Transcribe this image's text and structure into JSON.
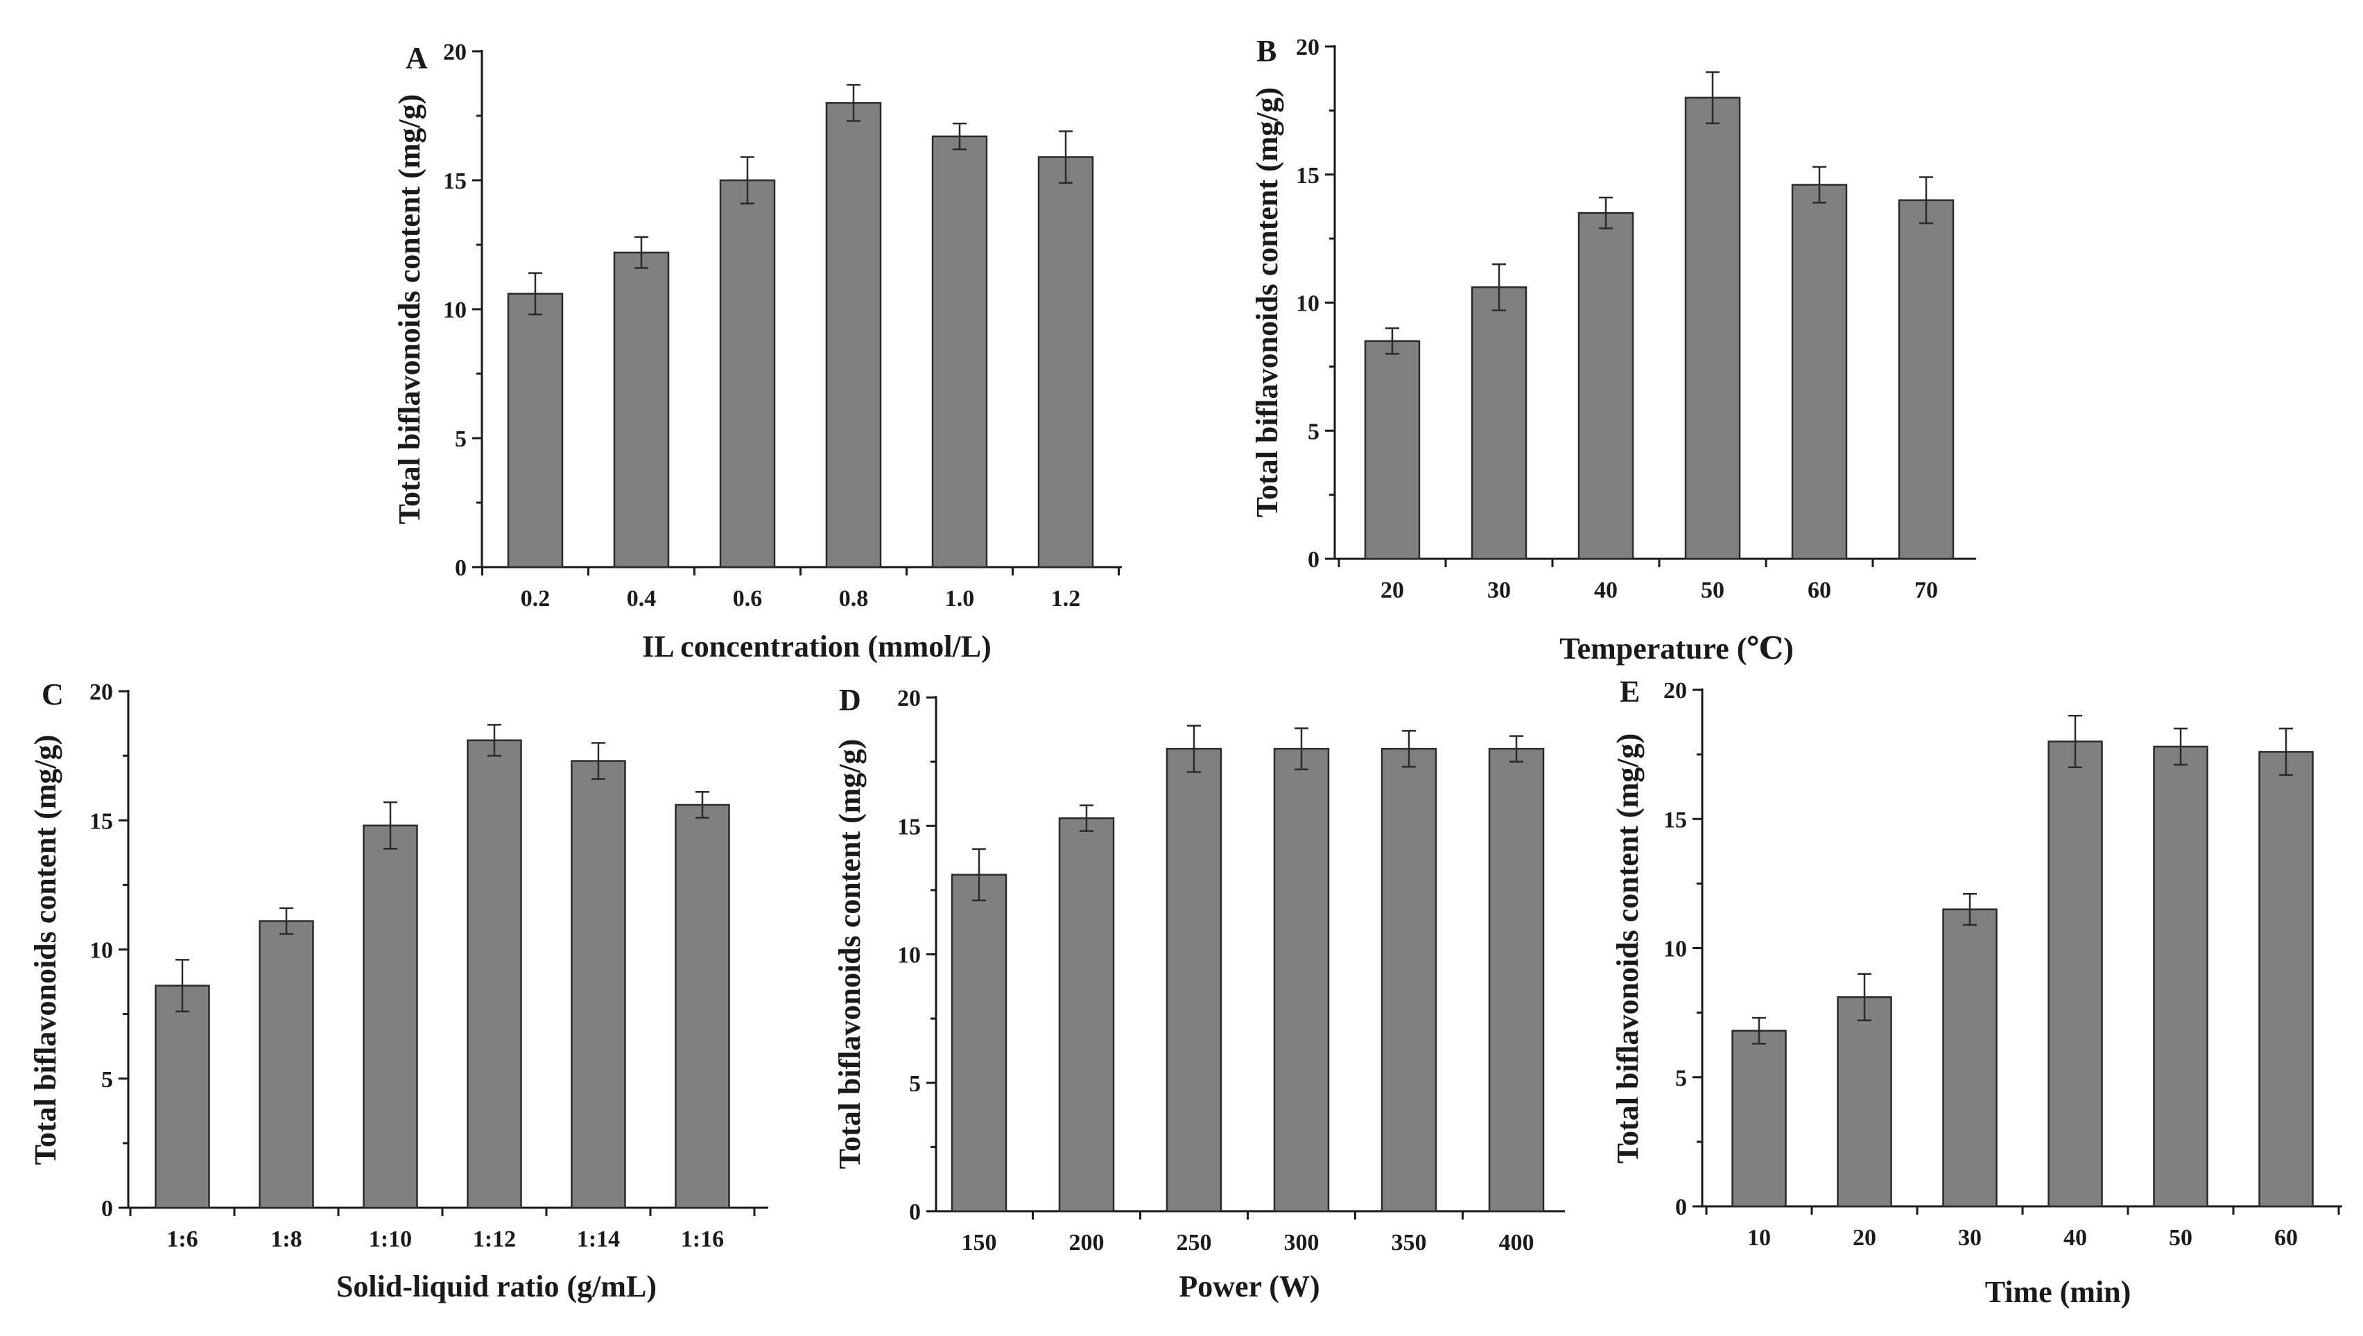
{
  "chart_data": [
    {
      "panel": "A",
      "type": "bar",
      "categories": [
        "0.2",
        "0.4",
        "0.6",
        "0.8",
        "1.0",
        "1.2"
      ],
      "values": [
        10.6,
        12.2,
        15.0,
        18.0,
        16.7,
        15.9
      ],
      "errors": [
        0.8,
        0.6,
        0.9,
        0.7,
        0.5,
        1.0
      ],
      "xlabel": "IL concentration (mmol/L)",
      "ylabel": "Total biflavonoids content (mg/g)",
      "ylim": [
        0,
        20
      ],
      "yticks": [
        "0",
        "5",
        "10",
        "15",
        "20"
      ]
    },
    {
      "panel": "B",
      "type": "bar",
      "categories": [
        "20",
        "30",
        "40",
        "50",
        "60",
        "70"
      ],
      "values": [
        8.5,
        10.6,
        13.5,
        18.0,
        14.6,
        14.0
      ],
      "errors": [
        0.5,
        0.9,
        0.6,
        1.0,
        0.7,
        0.9
      ],
      "xlabel": "Temperature (℃)",
      "ylabel": "Total biflavonoids content (mg/g)",
      "ylim": [
        0,
        20
      ],
      "yticks": [
        "0",
        "5",
        "10",
        "15",
        "20"
      ]
    },
    {
      "panel": "C",
      "type": "bar",
      "categories": [
        "1:6",
        "1:8",
        "1:10",
        "1:12",
        "1:14",
        "1:16"
      ],
      "values": [
        8.6,
        11.1,
        14.8,
        18.1,
        17.3,
        15.6
      ],
      "errors": [
        1.0,
        0.5,
        0.9,
        0.6,
        0.7,
        0.5
      ],
      "xlabel": "Solid-liquid ratio (g/mL)",
      "ylabel": "Total biflavonoids content (mg/g)",
      "ylim": [
        0,
        20
      ],
      "yticks": [
        "0",
        "5",
        "10",
        "15",
        "20"
      ]
    },
    {
      "panel": "D",
      "type": "bar",
      "categories": [
        "150",
        "200",
        "250",
        "300",
        "350",
        "400"
      ],
      "values": [
        13.1,
        15.3,
        18.0,
        18.0,
        18.0,
        18.0
      ],
      "errors": [
        1.0,
        0.5,
        0.9,
        0.8,
        0.7,
        0.5
      ],
      "xlabel": "Power (W)",
      "ylabel": "Total biflavonoids content (mg/g)",
      "ylim": [
        0,
        20
      ],
      "yticks": [
        "0",
        "5",
        "10",
        "15",
        "20"
      ]
    },
    {
      "panel": "E",
      "type": "bar",
      "categories": [
        "10",
        "20",
        "30",
        "40",
        "50",
        "60"
      ],
      "values": [
        6.8,
        8.1,
        11.5,
        18.0,
        17.8,
        17.6
      ],
      "errors": [
        0.5,
        0.9,
        0.6,
        1.0,
        0.7,
        0.9
      ],
      "xlabel": "Time (min)",
      "ylabel": "Total biflavonoids content (mg/g)",
      "ylim": [
        0,
        20
      ],
      "yticks": [
        "0",
        "5",
        "10",
        "15",
        "20"
      ]
    }
  ]
}
